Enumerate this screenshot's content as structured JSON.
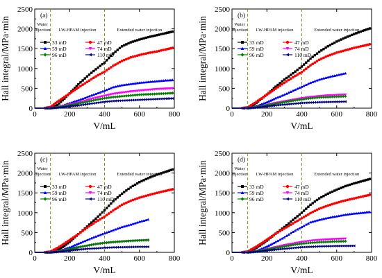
{
  "chart_data": [
    {
      "panel": "(a)",
      "type": "line",
      "xlabel": "V/mL",
      "ylabel": "Hall integral/MPa·min",
      "xlim": [
        0,
        800
      ],
      "ylim": [
        0,
        2500
      ],
      "xticks": [
        "0",
        "200",
        "400",
        "600",
        "800"
      ],
      "yticks": [
        "0",
        "500",
        "1000",
        "1500",
        "2000",
        "2500"
      ],
      "vlines": [
        90,
        400
      ],
      "regions": [
        [
          "Water",
          "injection"
        ],
        [
          "LW-HPAM injection"
        ],
        [
          "Extended water injection"
        ]
      ],
      "series": [
        {
          "name": "33 mD",
          "color": "#000000",
          "marker": "square",
          "x": [
            0,
            50,
            90,
            130,
            170,
            210,
            250,
            300,
            350,
            400,
            450,
            500,
            550,
            600,
            650,
            700,
            750,
            790
          ],
          "y": [
            0,
            0,
            0,
            80,
            240,
            420,
            600,
            800,
            980,
            1150,
            1380,
            1560,
            1660,
            1730,
            1790,
            1840,
            1890,
            1930
          ]
        },
        {
          "name": "47 mD",
          "color": "#ff0000",
          "marker": "circle",
          "x": [
            0,
            50,
            90,
            130,
            170,
            210,
            250,
            300,
            350,
            400,
            450,
            500,
            550,
            600,
            650,
            700,
            750,
            790
          ],
          "y": [
            0,
            0,
            30,
            160,
            280,
            400,
            520,
            660,
            800,
            920,
            1070,
            1190,
            1280,
            1340,
            1390,
            1430,
            1480,
            1520
          ]
        },
        {
          "name": "59 mD",
          "color": "#0000ff",
          "marker": "triangle-up",
          "x": [
            0,
            90,
            130,
            170,
            210,
            250,
            300,
            350,
            400,
            450,
            500,
            550,
            600,
            650,
            700,
            750,
            790
          ],
          "y": [
            0,
            0,
            30,
            80,
            140,
            200,
            280,
            360,
            440,
            530,
            580,
            610,
            640,
            660,
            680,
            700,
            710
          ]
        },
        {
          "name": "74 mD",
          "color": "#ff00ff",
          "marker": "triangle-down",
          "x": [
            0,
            90,
            130,
            170,
            210,
            250,
            300,
            350,
            400,
            450,
            500,
            550,
            600,
            650,
            700,
            750,
            790
          ],
          "y": [
            0,
            0,
            20,
            60,
            100,
            140,
            200,
            260,
            310,
            360,
            390,
            420,
            440,
            460,
            480,
            490,
            500
          ]
        },
        {
          "name": "96 mD",
          "color": "#008000",
          "marker": "diamond",
          "x": [
            0,
            90,
            130,
            170,
            210,
            250,
            300,
            350,
            400,
            450,
            500,
            550,
            600,
            650,
            700,
            750,
            790
          ],
          "y": [
            0,
            0,
            20,
            50,
            80,
            120,
            160,
            210,
            250,
            280,
            300,
            320,
            340,
            350,
            360,
            370,
            380
          ]
        },
        {
          "name": "110 mD",
          "color": "#000080",
          "marker": "triangle-left",
          "x": [
            0,
            90,
            130,
            170,
            210,
            250,
            300,
            350,
            400,
            450,
            500,
            550,
            600,
            650,
            700,
            750,
            790
          ],
          "y": [
            0,
            0,
            10,
            30,
            50,
            70,
            100,
            130,
            160,
            180,
            190,
            200,
            210,
            220,
            230,
            240,
            245
          ]
        }
      ]
    },
    {
      "panel": "(b)",
      "type": "line",
      "xlabel": "V/mL",
      "ylabel": "Hall integral/MPa·min",
      "xlim": [
        0,
        800
      ],
      "ylim": [
        0,
        2500
      ],
      "xticks": [
        "0",
        "200",
        "400",
        "600",
        "800"
      ],
      "yticks": [
        "0",
        "500",
        "1000",
        "1500",
        "2000",
        "2500"
      ],
      "vlines": [
        90,
        400
      ],
      "regions": [
        [
          "Water",
          "injection"
        ],
        [
          "LW-HPAM injection"
        ],
        [
          "Extended water injection"
        ]
      ],
      "series": [
        {
          "name": "33 mD",
          "color": "#000000",
          "marker": "square",
          "x": [
            0,
            50,
            90,
            130,
            170,
            210,
            250,
            300,
            350,
            400,
            450,
            500,
            550,
            600,
            650,
            700,
            750,
            790
          ],
          "y": [
            0,
            0,
            10,
            100,
            240,
            380,
            540,
            720,
            880,
            1050,
            1250,
            1420,
            1560,
            1680,
            1780,
            1870,
            1950,
            2010
          ]
        },
        {
          "name": "47 mD",
          "color": "#ff0000",
          "marker": "circle",
          "x": [
            0,
            50,
            90,
            130,
            170,
            210,
            250,
            300,
            350,
            400,
            450,
            500,
            550,
            600,
            650,
            700,
            750,
            790
          ],
          "y": [
            0,
            0,
            20,
            130,
            250,
            370,
            490,
            640,
            780,
            910,
            1080,
            1220,
            1320,
            1400,
            1460,
            1520,
            1570,
            1610
          ]
        },
        {
          "name": "59 mD",
          "color": "#0000ff",
          "marker": "triangle-up",
          "x": [
            0,
            90,
            130,
            170,
            210,
            250,
            300,
            350,
            400,
            450,
            500,
            550,
            600,
            650
          ],
          "y": [
            0,
            0,
            40,
            100,
            170,
            250,
            340,
            440,
            540,
            640,
            720,
            780,
            830,
            880
          ]
        },
        {
          "name": "74 mD",
          "color": "#ff00ff",
          "marker": "triangle-down",
          "x": [
            0,
            90,
            130,
            170,
            210,
            250,
            300,
            350,
            400,
            450,
            500,
            550,
            600,
            650
          ],
          "y": [
            0,
            0,
            20,
            50,
            90,
            130,
            170,
            210,
            250,
            280,
            300,
            320,
            330,
            340
          ]
        },
        {
          "name": "96 mD",
          "color": "#008000",
          "marker": "diamond",
          "x": [
            0,
            90,
            130,
            170,
            210,
            250,
            300,
            350,
            400,
            450,
            500,
            550,
            600,
            650
          ],
          "y": [
            0,
            0,
            20,
            50,
            80,
            110,
            150,
            190,
            220,
            250,
            270,
            280,
            290,
            300
          ]
        },
        {
          "name": "110 mD",
          "color": "#000080",
          "marker": "triangle-left",
          "x": [
            0,
            90,
            130,
            170,
            210,
            250,
            300,
            350,
            400,
            450,
            500,
            550,
            600,
            650
          ],
          "y": [
            0,
            0,
            10,
            30,
            50,
            70,
            90,
            110,
            130,
            140,
            150,
            155,
            160,
            165
          ]
        }
      ]
    },
    {
      "panel": "(c)",
      "type": "line",
      "xlabel": "V/mL",
      "ylabel": "Hall integral/MPa·min",
      "xlim": [
        0,
        800
      ],
      "ylim": [
        0,
        2500
      ],
      "xticks": [
        "0",
        "200",
        "400",
        "600",
        "800"
      ],
      "yticks": [
        "0",
        "500",
        "1000",
        "1500",
        "2000",
        "2500"
      ],
      "vlines": [
        90,
        400
      ],
      "regions": [
        [
          "Water",
          "injection"
        ],
        [
          "LW-HPAM injection"
        ],
        [
          "Extended water injection"
        ]
      ],
      "series": [
        {
          "name": "33 mD",
          "color": "#000000",
          "marker": "square",
          "x": [
            0,
            50,
            90,
            130,
            170,
            210,
            250,
            300,
            350,
            400,
            450,
            500,
            550,
            600,
            650,
            700,
            750,
            790
          ],
          "y": [
            0,
            0,
            0,
            60,
            160,
            300,
            460,
            650,
            850,
            1060,
            1290,
            1480,
            1640,
            1770,
            1870,
            1960,
            2030,
            2090
          ]
        },
        {
          "name": "47 mD",
          "color": "#ff0000",
          "marker": "circle",
          "x": [
            0,
            50,
            90,
            130,
            170,
            210,
            250,
            300,
            350,
            400,
            450,
            500,
            550,
            600,
            650,
            700,
            750,
            790
          ],
          "y": [
            0,
            0,
            20,
            110,
            220,
            340,
            460,
            620,
            770,
            900,
            1060,
            1200,
            1300,
            1380,
            1440,
            1500,
            1550,
            1590
          ]
        },
        {
          "name": "59 mD",
          "color": "#0000ff",
          "marker": "triangle-up",
          "x": [
            0,
            90,
            130,
            170,
            210,
            250,
            300,
            350,
            400,
            450,
            500,
            550,
            600,
            650
          ],
          "y": [
            0,
            0,
            30,
            80,
            140,
            220,
            310,
            400,
            480,
            560,
            640,
            700,
            770,
            830
          ]
        },
        {
          "name": "74 mD",
          "color": "#ff00ff",
          "marker": "triangle-down",
          "x": [
            0,
            90,
            130,
            170,
            210,
            250,
            300,
            350,
            400,
            450,
            500,
            550,
            600,
            650
          ],
          "y": [
            0,
            0,
            20,
            50,
            80,
            120,
            160,
            200,
            230,
            250,
            270,
            285,
            295,
            300
          ]
        },
        {
          "name": "96 mD",
          "color": "#008000",
          "marker": "diamond",
          "x": [
            0,
            90,
            130,
            170,
            210,
            250,
            300,
            350,
            400,
            450,
            500,
            550,
            600,
            650
          ],
          "y": [
            0,
            0,
            20,
            50,
            90,
            130,
            170,
            210,
            240,
            260,
            275,
            290,
            300,
            310
          ]
        },
        {
          "name": "110 mD",
          "color": "#000080",
          "marker": "triangle-left",
          "x": [
            0,
            90,
            130,
            170,
            210,
            250,
            300,
            350,
            400,
            450,
            500,
            550,
            600,
            650
          ],
          "y": [
            0,
            0,
            10,
            30,
            50,
            70,
            90,
            100,
            115,
            125,
            130,
            135,
            140,
            140
          ]
        }
      ]
    },
    {
      "panel": "(d)",
      "type": "line",
      "xlabel": "V/mL",
      "ylabel": "Hall integral/MPa·min",
      "xlim": [
        0,
        800
      ],
      "ylim": [
        0,
        2500
      ],
      "xticks": [
        "0",
        "200",
        "400",
        "600",
        "800"
      ],
      "yticks": [
        "0",
        "500",
        "1000",
        "1500",
        "2000",
        "2500"
      ],
      "vlines": [
        90,
        400
      ],
      "regions": [
        [
          "Water",
          "injection"
        ],
        [
          "LW-HPAM injection"
        ],
        [
          "Extended water injection"
        ]
      ],
      "series": [
        {
          "name": "33 mD",
          "color": "#000000",
          "marker": "square",
          "x": [
            0,
            50,
            90,
            130,
            170,
            210,
            250,
            300,
            350,
            400,
            450,
            500,
            550,
            600,
            650,
            700,
            750,
            790
          ],
          "y": [
            0,
            0,
            10,
            90,
            200,
            330,
            470,
            640,
            820,
            1000,
            1200,
            1360,
            1480,
            1580,
            1670,
            1740,
            1800,
            1850
          ]
        },
        {
          "name": "47 mD",
          "color": "#ff0000",
          "marker": "circle",
          "x": [
            0,
            50,
            90,
            130,
            170,
            210,
            250,
            300,
            350,
            400,
            450,
            500,
            550,
            600,
            650,
            700,
            750,
            790
          ],
          "y": [
            0,
            0,
            20,
            120,
            230,
            350,
            470,
            600,
            730,
            860,
            990,
            1100,
            1180,
            1250,
            1310,
            1360,
            1410,
            1450
          ]
        },
        {
          "name": "59 mD",
          "color": "#0000ff",
          "marker": "triangle-up",
          "x": [
            0,
            90,
            130,
            170,
            210,
            250,
            300,
            350,
            400,
            450,
            500,
            550,
            600,
            650,
            700,
            750,
            790
          ],
          "y": [
            0,
            0,
            30,
            90,
            170,
            260,
            380,
            520,
            640,
            760,
            820,
            870,
            910,
            950,
            980,
            1000,
            1020
          ]
        },
        {
          "name": "74 mD",
          "color": "#ff00ff",
          "marker": "triangle-down",
          "x": [
            0,
            90,
            130,
            170,
            210,
            250,
            300,
            350,
            400,
            450,
            500,
            550,
            600,
            650
          ],
          "y": [
            0,
            0,
            20,
            50,
            90,
            130,
            180,
            220,
            260,
            290,
            310,
            325,
            335,
            345
          ]
        },
        {
          "name": "96 mD",
          "color": "#008000",
          "marker": "diamond",
          "x": [
            0,
            90,
            130,
            170,
            210,
            250,
            300,
            350,
            400,
            450,
            500,
            550,
            600,
            650
          ],
          "y": [
            0,
            0,
            20,
            50,
            80,
            110,
            150,
            190,
            220,
            240,
            255,
            265,
            275,
            280
          ]
        },
        {
          "name": "110 mD",
          "color": "#000080",
          "marker": "triangle-left",
          "x": [
            0,
            90,
            130,
            170,
            210,
            250,
            300,
            350,
            400,
            450,
            500,
            550,
            600,
            650,
            700
          ],
          "y": [
            0,
            0,
            10,
            30,
            50,
            70,
            90,
            110,
            130,
            140,
            150,
            155,
            160,
            162,
            165
          ]
        }
      ]
    }
  ]
}
